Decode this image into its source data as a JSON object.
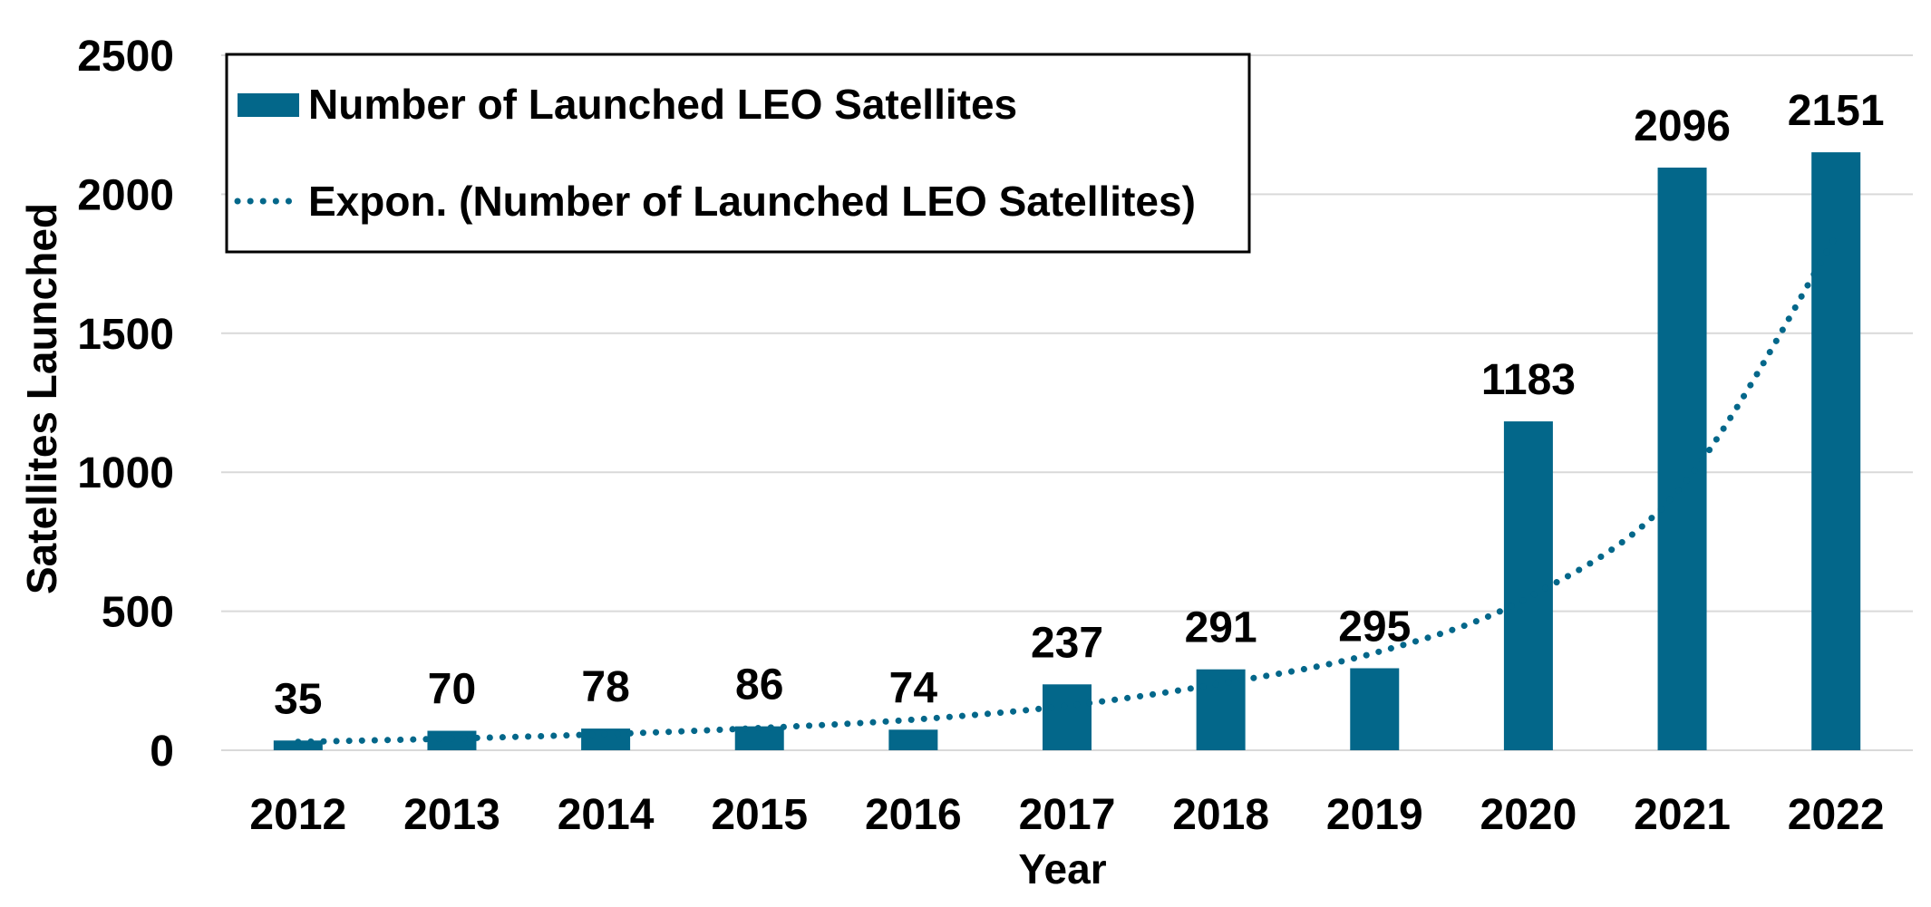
{
  "chart_data": {
    "type": "bar",
    "title": "",
    "xlabel": "Year",
    "ylabel": "Satellites Launched",
    "categories": [
      "2012",
      "2013",
      "2014",
      "2015",
      "2016",
      "2017",
      "2018",
      "2019",
      "2020",
      "2021",
      "2022"
    ],
    "series": [
      {
        "name": "Number of Launched LEO Satellites",
        "type": "bar",
        "color": "#03678a",
        "values": [
          35,
          70,
          78,
          86,
          74,
          237,
          291,
          295,
          1183,
          2096,
          2151
        ],
        "data_labels": [
          "35",
          "70",
          "78",
          "86",
          "74",
          "237",
          "291",
          "295",
          "1183",
          "2096",
          "2151"
        ]
      },
      {
        "name": "Expon. (Number of Launched LEO Satellites)",
        "type": "trendline-exponential",
        "color": "#03678a",
        "line_style": "dotted",
        "values": [
          30,
          42,
          58,
          80,
          110,
          160,
          240,
          350,
          550,
          950,
          1850
        ]
      }
    ],
    "ylim": [
      0,
      2500
    ],
    "yticks": [
      "0",
      "500",
      "1000",
      "1500",
      "2000",
      "2500"
    ],
    "grid": true,
    "legend": {
      "placement": "top-left",
      "entries": [
        "Number of Launched LEO Satellites",
        "Expon. (Number of Launched LEO Satellites)"
      ]
    }
  }
}
